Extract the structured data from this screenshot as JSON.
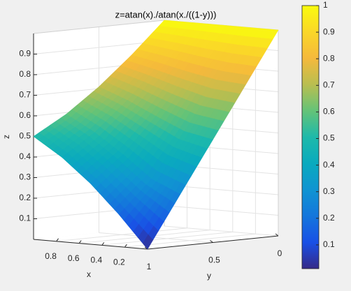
{
  "chart_data": {
    "type": "surface",
    "title": "z=atan(x)./atan(x./((1-y)))",
    "xlabel": "x",
    "ylabel": "y",
    "zlabel": "z",
    "x": [
      0,
      0.25,
      0.5,
      0.75,
      1
    ],
    "y": [
      0,
      0.25,
      0.5,
      0.75,
      1
    ],
    "z": [
      [
        1,
        1,
        1,
        1,
        1
      ],
      [
        0.75,
        0.761,
        0.788,
        0.819,
        0.847
      ],
      [
        0.5,
        0.528,
        0.59,
        0.655,
        0.709
      ],
      [
        0.25,
        0.312,
        0.419,
        0.515,
        0.592
      ],
      [
        0,
        0.156,
        0.295,
        0.41,
        0.5
      ]
    ],
    "xlim": [
      0,
      1
    ],
    "ylim": [
      0,
      1
    ],
    "zlim": [
      0,
      1
    ],
    "xticks": [
      0.2,
      0.4,
      0.6,
      0.8
    ],
    "yticks": [
      0,
      0.5,
      1
    ],
    "zticks": [
      0.1,
      0.2,
      0.3,
      0.4,
      0.5,
      0.6,
      0.7,
      0.8,
      0.9
    ],
    "grid": true,
    "colormap": "parula",
    "colorbar": {
      "lim": [
        0,
        1
      ],
      "ticks": [
        0.1,
        0.2,
        0.3,
        0.4,
        0.5,
        0.6,
        0.7,
        0.8,
        0.9,
        1
      ]
    }
  }
}
